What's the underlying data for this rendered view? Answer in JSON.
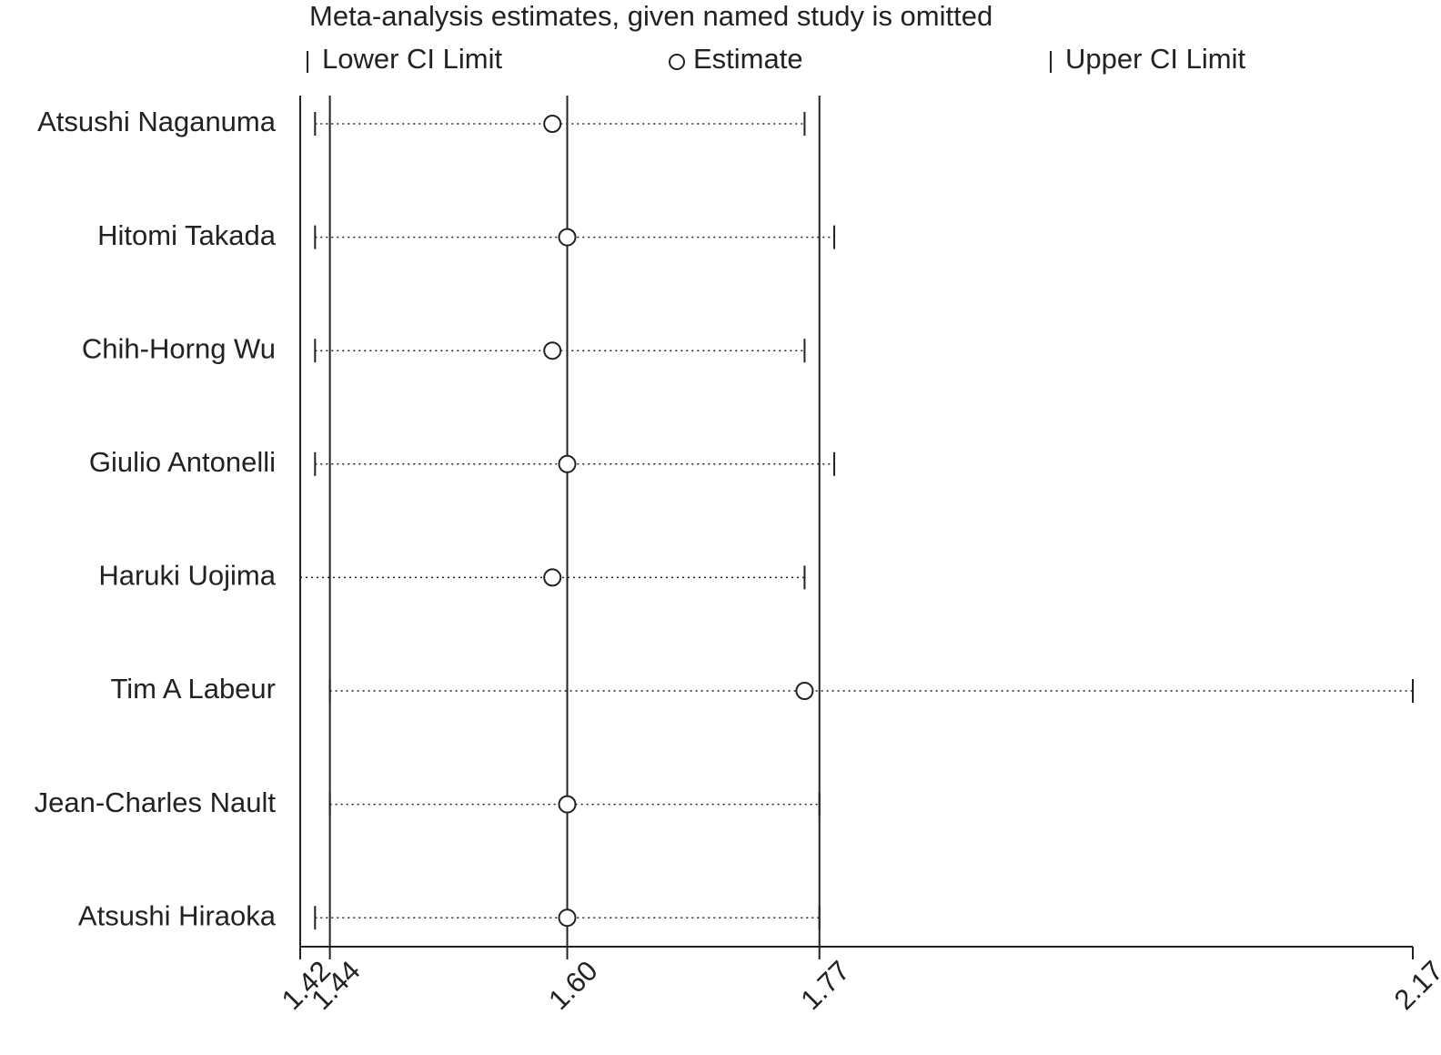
{
  "chart_data": {
    "type": "forest",
    "title": "Meta-analysis estimates, given named study is omitted",
    "categories": [
      "Atsushi Naganuma",
      "Hitomi Takada",
      "Chih-Horng Wu",
      "Giulio Antonelli",
      "Haruki Uojima",
      "Tim A Labeur",
      "Jean-Charles Nault",
      "Atsushi Hiraoka"
    ],
    "series": [
      {
        "name": "Lower CI Limit",
        "color": "#222222",
        "values": [
          1.43,
          1.43,
          1.43,
          1.43,
          1.42,
          1.44,
          1.44,
          1.43
        ]
      },
      {
        "name": "Estimate",
        "color": "#222222",
        "values": [
          1.59,
          1.6,
          1.59,
          1.6,
          1.59,
          1.76,
          1.6,
          1.6
        ]
      },
      {
        "name": "Upper CI Limit",
        "color": "#222222",
        "values": [
          1.76,
          1.78,
          1.76,
          1.78,
          1.76,
          2.17,
          1.77,
          1.77
        ]
      }
    ],
    "xlim": [
      1.42,
      2.17
    ],
    "xticks": [
      {
        "value": 1.42,
        "label": "1.42"
      },
      {
        "value": 1.44,
        "label": "1.44"
      },
      {
        "value": 1.6,
        "label": "1.60"
      },
      {
        "value": 1.77,
        "label": "1.77"
      },
      {
        "value": 2.17,
        "label": "2.17"
      }
    ],
    "grid": true
  }
}
